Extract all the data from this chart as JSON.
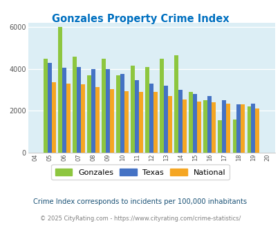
{
  "title": "Gonzales Property Crime Index",
  "years": [
    2004,
    2005,
    2006,
    2007,
    2008,
    2009,
    2010,
    2011,
    2012,
    2013,
    2014,
    2015,
    2016,
    2017,
    2018,
    2019,
    2020
  ],
  "gonzales": [
    null,
    4500,
    6000,
    4600,
    3700,
    4500,
    3700,
    4150,
    4100,
    4500,
    4650,
    2900,
    2500,
    1550,
    1600,
    2200,
    null
  ],
  "texas": [
    null,
    4300,
    4050,
    4100,
    4000,
    4000,
    3750,
    3450,
    3300,
    3200,
    3000,
    2800,
    2700,
    2500,
    2300,
    2350,
    null
  ],
  "national": [
    null,
    3350,
    3300,
    3250,
    3150,
    3050,
    2950,
    2900,
    2900,
    2700,
    2550,
    2450,
    2400,
    2350,
    2300,
    2100,
    null
  ],
  "gonzales_color": "#8dc63f",
  "texas_color": "#4472c4",
  "national_color": "#f5a623",
  "bg_color": "#dceef5",
  "ylim": [
    0,
    6200
  ],
  "yticks": [
    0,
    2000,
    4000,
    6000
  ],
  "all_years": [
    2004,
    2005,
    2006,
    2007,
    2008,
    2009,
    2010,
    2011,
    2012,
    2013,
    2014,
    2015,
    2016,
    2017,
    2018,
    2019,
    2020
  ],
  "footnote1": "Crime Index corresponds to incidents per 100,000 inhabitants",
  "footnote2": "© 2025 CityRating.com - https://www.cityrating.com/crime-statistics/",
  "title_color": "#0070c0",
  "footnote1_color": "#1a5276",
  "footnote2_color": "#808080"
}
